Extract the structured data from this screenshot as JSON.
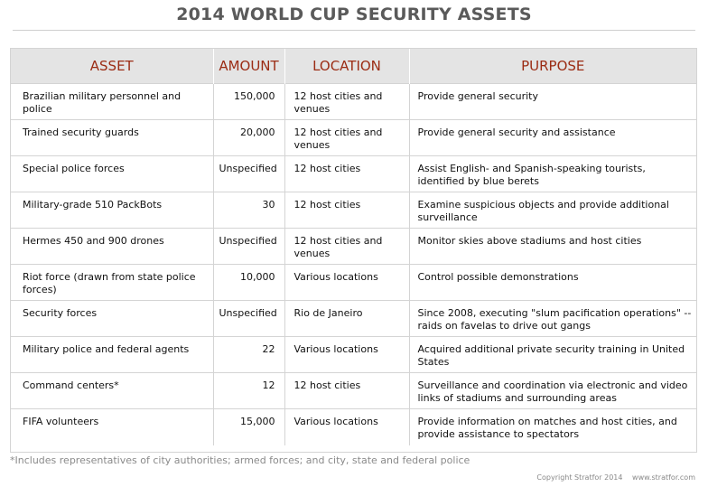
{
  "title": "2014 WORLD CUP SECURITY ASSETS",
  "columns": {
    "asset": "ASSET",
    "amount": "AMOUNT",
    "location": "LOCATION",
    "purpose": "PURPOSE"
  },
  "rows": [
    {
      "asset": "Brazilian military personnel and police",
      "amount": "150,000",
      "location": "12 host cities and venues",
      "purpose": "Provide general security"
    },
    {
      "asset": "Trained security guards",
      "amount": "20,000",
      "location": "12 host cities and venues",
      "purpose": "Provide general security and assistance"
    },
    {
      "asset": "Special police forces",
      "amount": "Unspecified",
      "location": "12 host cities",
      "purpose": "Assist English- and Spanish-speaking tourists, identified by blue berets"
    },
    {
      "asset": "Military-grade 510 PackBots",
      "amount": "30",
      "location": "12 host cities",
      "purpose": "Examine suspicious objects and provide additional surveillance"
    },
    {
      "asset": "Hermes 450 and 900 drones",
      "amount": "Unspecified",
      "location": "12 host cities and venues",
      "purpose": "Monitor skies above stadiums and host cities"
    },
    {
      "asset": "Riot force (drawn from state police forces)",
      "amount": "10,000",
      "location": "Various locations",
      "purpose": "Control possible demonstrations"
    },
    {
      "asset": "Security forces",
      "amount": "Unspecified",
      "location": "Rio de Janeiro",
      "purpose": "Since 2008, executing \"slum pacification operations\" -- raids on favelas to drive out gangs"
    },
    {
      "asset": "Military police and federal agents",
      "amount": "22",
      "location": "Various locations",
      "purpose": "Acquired additional private security training in United States"
    },
    {
      "asset": "Command centers*",
      "amount": "12",
      "location": "12 host cities",
      "purpose": "Surveillance and coordination via electronic and video links of stadiums and surrounding areas"
    },
    {
      "asset": "FIFA volunteers",
      "amount": "15,000",
      "location": " Various locations",
      "purpose": "Provide information on matches and host cities, and provide assistance to spectators"
    }
  ],
  "footnote": "*Includes representatives of city authorities; armed forces; and city, state and federal police",
  "copyright": "Copyright Stratfor 2014",
  "website": "www.stratfor.com"
}
